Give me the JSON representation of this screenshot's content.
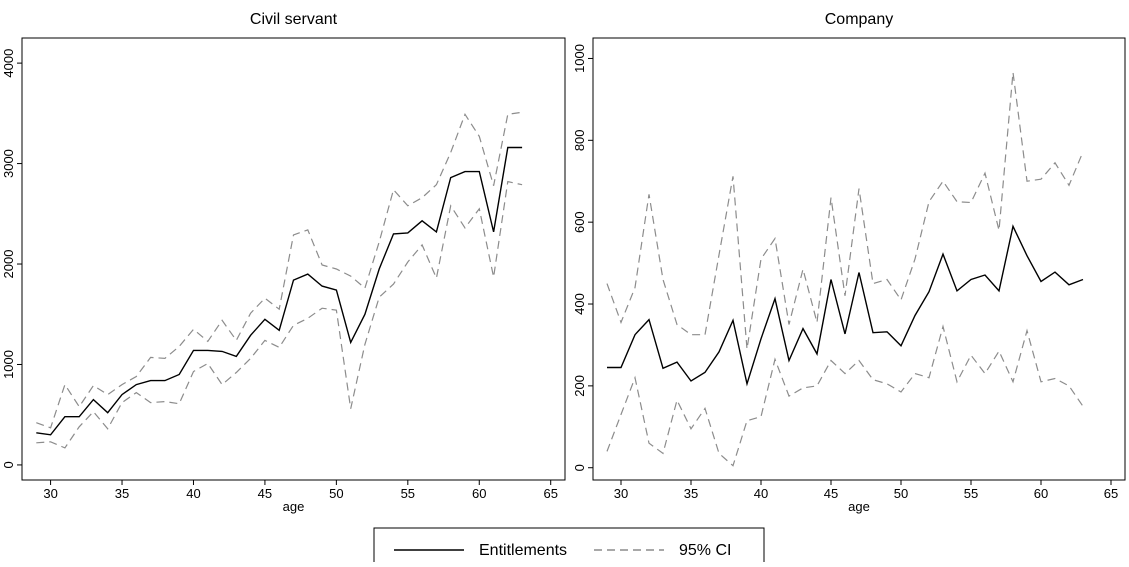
{
  "chart_data": [
    {
      "type": "line",
      "title": "Civil servant",
      "x_label": "age",
      "x": [
        29,
        30,
        31,
        32,
        33,
        34,
        35,
        36,
        37,
        38,
        39,
        40,
        41,
        42,
        43,
        44,
        45,
        46,
        47,
        48,
        49,
        50,
        51,
        52,
        53,
        54,
        55,
        56,
        57,
        58,
        59,
        60,
        61,
        62,
        63
      ],
      "xlim": [
        28,
        66
      ],
      "xticks": [
        30,
        35,
        40,
        45,
        50,
        55,
        60,
        65
      ],
      "ylim": [
        -150,
        4250
      ],
      "yticks": [
        0,
        1000,
        2000,
        3000,
        4000
      ],
      "series": [
        {
          "color": "#000000",
          "dash": false,
          "values": [
            320,
            300,
            480,
            480,
            650,
            520,
            700,
            800,
            840,
            840,
            900,
            1140,
            1140,
            1130,
            1080,
            1290,
            1450,
            1340,
            1840,
            1900,
            1780,
            1740,
            1220,
            1500,
            1950,
            2300,
            2310,
            2430,
            2320,
            2860,
            2920,
            2920,
            2320,
            3160,
            3160
          ]
        },
        {
          "color": "#8c8c8c",
          "dash": true,
          "values": [
            420,
            370,
            800,
            580,
            790,
            700,
            800,
            880,
            1070,
            1060,
            1180,
            1350,
            1230,
            1440,
            1240,
            1510,
            1660,
            1550,
            2290,
            2340,
            1990,
            1950,
            1880,
            1760,
            2220,
            2740,
            2580,
            2660,
            2790,
            3110,
            3490,
            3270,
            2780,
            3490,
            3510
          ],
          "lower": [
            220,
            230,
            170,
            380,
            530,
            360,
            620,
            720,
            620,
            630,
            610,
            930,
            1010,
            800,
            920,
            1060,
            1240,
            1170,
            1390,
            1460,
            1560,
            1540,
            560,
            1200,
            1670,
            1800,
            2020,
            2190,
            1860,
            2580,
            2360,
            2550,
            1870,
            2820,
            2790
          ]
        }
      ]
    },
    {
      "type": "line",
      "title": "Company",
      "x_label": "age",
      "x": [
        29,
        30,
        31,
        32,
        33,
        34,
        35,
        36,
        37,
        38,
        39,
        40,
        41,
        42,
        43,
        44,
        45,
        46,
        47,
        48,
        49,
        50,
        51,
        52,
        53,
        54,
        55,
        56,
        57,
        58,
        59,
        60,
        61,
        62,
        63
      ],
      "xlim": [
        28,
        66
      ],
      "xticks": [
        30,
        35,
        40,
        45,
        50,
        55,
        60,
        65
      ],
      "ylim": [
        -30,
        1050
      ],
      "yticks": [
        0,
        200,
        400,
        600,
        800,
        1000
      ],
      "series": [
        {
          "color": "#000000",
          "dash": false,
          "values": [
            245,
            245,
            325,
            362,
            243,
            258,
            212,
            233,
            283,
            360,
            205,
            315,
            413,
            262,
            340,
            278,
            460,
            327,
            477,
            330,
            332,
            298,
            372,
            430,
            522,
            432,
            460,
            471,
            432,
            590,
            518,
            455,
            478,
            447,
            460
          ]
        },
        {
          "color": "#8c8c8c",
          "dash": true,
          "values": [
            450,
            355,
            440,
            668,
            460,
            350,
            325,
            325,
            520,
            712,
            290,
            510,
            560,
            350,
            485,
            355,
            660,
            420,
            682,
            450,
            460,
            410,
            510,
            650,
            700,
            650,
            648,
            720,
            580,
            966,
            700,
            705,
            745,
            690,
            772
          ],
          "lower": [
            40,
            130,
            220,
            60,
            35,
            165,
            95,
            145,
            35,
            5,
            115,
            125,
            265,
            175,
            195,
            200,
            262,
            230,
            262,
            215,
            205,
            185,
            230,
            220,
            345,
            210,
            275,
            230,
            285,
            210,
            335,
            210,
            218,
            200,
            150
          ]
        }
      ]
    }
  ],
  "legend": [
    {
      "name": "Entitlements",
      "color": "#000000",
      "dash": false
    },
    {
      "name": "95% CI",
      "color": "#8c8c8c",
      "dash": true
    }
  ]
}
